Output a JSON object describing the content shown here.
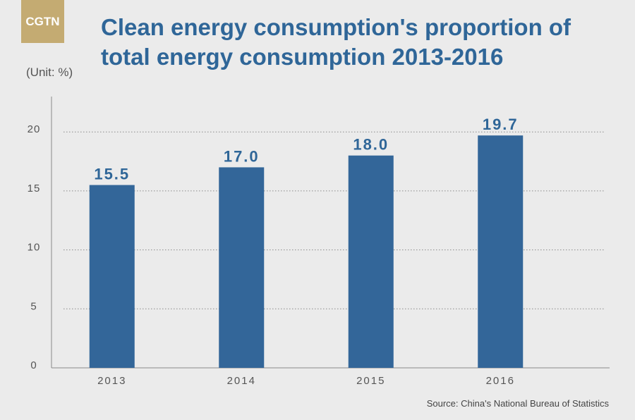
{
  "logo": {
    "text": "CGTN"
  },
  "header": {
    "title": "Clean energy consumption's proportion of total energy consumption 2013-2016",
    "unit": "(Unit: %)"
  },
  "footer": {
    "source": "Source: China's National Bureau of Statistics"
  },
  "colors": {
    "bar": "#336699",
    "title": "#2f6698",
    "logo": "#c4ab72",
    "background": "#ebebeb"
  },
  "chart_data": {
    "type": "bar",
    "categories": [
      "2013",
      "2014",
      "2015",
      "2016"
    ],
    "values": [
      15.5,
      17.0,
      18.0,
      19.7
    ],
    "value_labels": [
      "15.5",
      "17.0",
      "18.0",
      "19.7"
    ],
    "yticks": [
      0,
      5,
      10,
      15,
      20
    ],
    "ylim": [
      0,
      23.0
    ],
    "grid": "dotted horizontal",
    "ylabel": "(Unit: %)",
    "title": "Clean energy consumption's proportion of total energy consumption 2013-2016"
  }
}
